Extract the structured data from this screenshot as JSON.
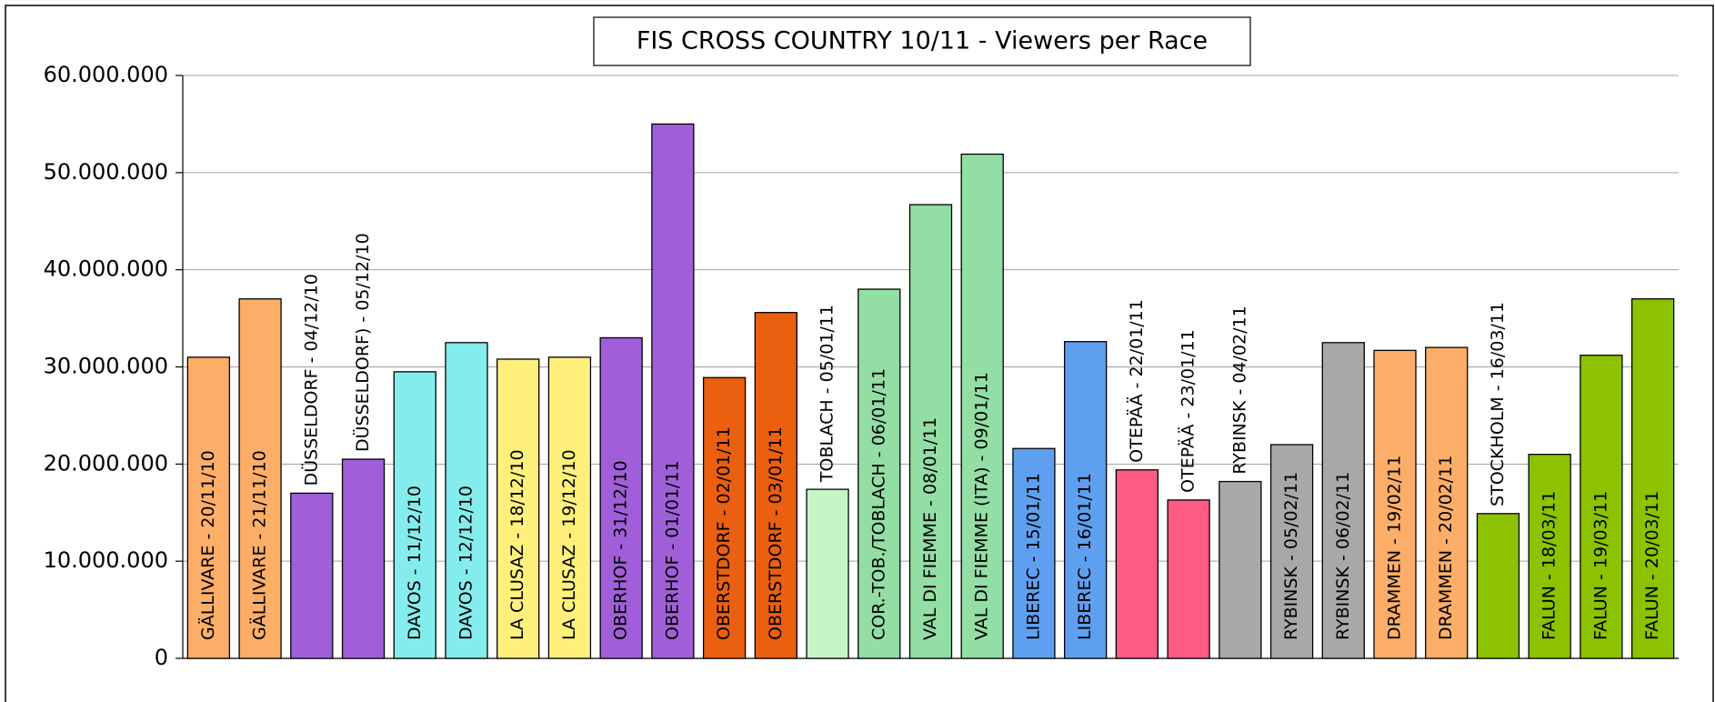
{
  "chart_data": {
    "type": "bar",
    "title": "FIS CROSS COUNTRY 10/11 - Viewers per Race",
    "categories": [
      "GÄLLIVARE - 20/11/10",
      "GÄLLIVARE - 21/11/10",
      "DÜSSELDORF - 04/12/10",
      "DÜSSELDORF) - 05/12/10",
      "DAVOS - 11/12/10",
      "DAVOS - 12/12/10",
      "LA CLUSAZ - 18/12/10",
      "LA CLUSAZ - 19/12/10",
      "OBERHOF - 31/12/10",
      "OBERHOF - 01/01/11",
      "OBERSTDORF - 02/01/11",
      "OBERSTDORF - 03/01/11",
      "TOBLACH - 05/01/11",
      "COR.-TOB./TOBLACH - 06/01/11",
      "VAL DI FIEMME - 08/01/11",
      "VAL DI FIEMME (ITA) - 09/01/11",
      "LIBEREC - 15/01/11",
      "LIBEREC - 16/01/11",
      "OTEPÄÄ - 22/01/11",
      "OTEPÄÄ - 23/01/11",
      "RYBINSK - 04/02/11",
      "RYBINSK - 05/02/11",
      "RYBINSK - 06/02/11",
      "DRAMMEN - 19/02/11",
      "DRAMMEN - 20/02/11",
      "STOCKHOLM - 16/03/11",
      "FALUN - 18/03/11",
      "FALUN - 19/03/11",
      "FALUN - 20/03/11"
    ],
    "values": [
      31000000,
      37000000,
      17000000,
      20500000,
      29500000,
      32500000,
      30800000,
      31000000,
      33000000,
      55000000,
      28900000,
      35600000,
      17400000,
      38000000,
      46700000,
      51900000,
      21600000,
      32600000,
      19400000,
      16300000,
      18200000,
      22000000,
      32500000,
      31700000,
      32000000,
      14900000,
      21000000,
      31200000,
      37000000
    ],
    "colors": [
      "#fcae68",
      "#fcae68",
      "#a05fd8",
      "#a05fd8",
      "#84ecec",
      "#84ecec",
      "#fff07c",
      "#fff07c",
      "#a05fd8",
      "#a05fd8",
      "#ea5f10",
      "#ea5f10",
      "#c6f6c6",
      "#92dea4",
      "#92dea4",
      "#92dea4",
      "#5f9ff0",
      "#5f9ff0",
      "#ff5c84",
      "#ff5c84",
      "#a8a8a8",
      "#a8a8a8",
      "#a8a8a8",
      "#fcae68",
      "#fcae68",
      "#8cc200",
      "#8cc200",
      "#8cc200",
      "#8cc200"
    ],
    "ylim": [
      0,
      60000000
    ],
    "yticks": [
      0,
      {
        "value": 10000000,
        "label": "10.000.000"
      },
      {
        "value": 20000000,
        "label": "20.000.000"
      },
      {
        "value": 30000000,
        "label": "30.000.000"
      },
      {
        "value": 40000000,
        "label": "40.000.000"
      },
      {
        "value": 50000000,
        "label": "50.000.000"
      },
      {
        "value": 60000000,
        "label": "60.000.000"
      }
    ],
    "grid": true
  }
}
